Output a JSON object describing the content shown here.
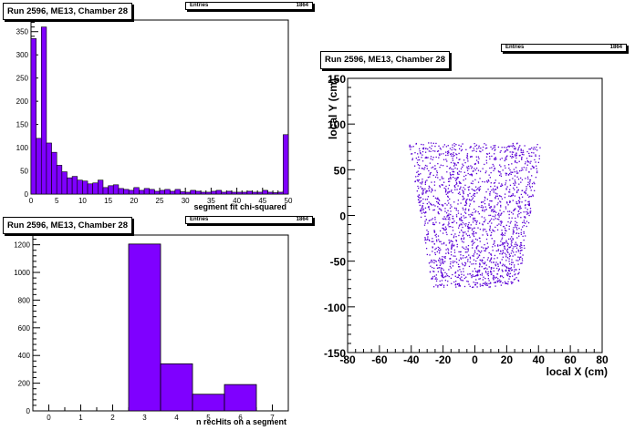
{
  "colors": {
    "fill": "#7f00ff",
    "axis": "#000000",
    "scatter": "#5a00d6"
  },
  "panels": {
    "chi2": {
      "title": "Run 2596, ME13, Chamber 28",
      "stats_label": "Entries",
      "stats_value": "1864",
      "xlabel": "segment fit chi-squared"
    },
    "nrechits": {
      "title": "Run 2596, ME13, Chamber 28",
      "stats_label": "Entries",
      "stats_value": "1864",
      "xlabel": "n recHits on a segment"
    },
    "scatter": {
      "title": "Run 2596, ME13, Chamber 28",
      "stats_label": "Entries",
      "stats_value": "1864",
      "xlabel": "local X (cm)",
      "ylabel": "local Y (cm)"
    }
  },
  "chart_data": [
    {
      "type": "bar",
      "title": "Run 2596, ME13, Chamber 28",
      "xlabel": "segment fit chi-squared",
      "ylabel": "",
      "xlim": [
        0,
        50
      ],
      "ylim": [
        0,
        375
      ],
      "bin_width": 1,
      "values": [
        335,
        120,
        360,
        110,
        90,
        62,
        48,
        35,
        38,
        30,
        28,
        22,
        24,
        30,
        14,
        18,
        20,
        12,
        10,
        8,
        14,
        8,
        12,
        10,
        6,
        8,
        10,
        6,
        10,
        5,
        4,
        8,
        6,
        4,
        4,
        6,
        8,
        4,
        6,
        4,
        4,
        4,
        6,
        4,
        4,
        8,
        4,
        3,
        4,
        128
      ],
      "xticks": [
        0,
        5,
        10,
        15,
        20,
        25,
        30,
        35,
        40,
        45,
        50
      ],
      "yticks": [
        0,
        50,
        100,
        150,
        200,
        250,
        300,
        350
      ]
    },
    {
      "type": "bar",
      "title": "Run 2596, ME13, Chamber 28",
      "xlabel": "n recHits on a segment",
      "ylabel": "",
      "xlim": [
        -0.5,
        7.5
      ],
      "ylim": [
        0,
        1270
      ],
      "bins": [
        {
          "low": 2.5,
          "high": 3.5,
          "value": 1205
        },
        {
          "low": 3.5,
          "high": 4.5,
          "value": 340
        },
        {
          "low": 4.5,
          "high": 5.5,
          "value": 120
        },
        {
          "low": 5.5,
          "high": 6.5,
          "value": 190
        }
      ],
      "xticks": [
        0,
        1,
        2,
        3,
        4,
        5,
        6,
        7
      ],
      "yticks": [
        0,
        200,
        400,
        600,
        800,
        1000,
        1200
      ]
    },
    {
      "type": "scatter",
      "title": "Run 2596, ME13, Chamber 28",
      "xlabel": "local X (cm)",
      "ylabel": "local Y (cm)",
      "xlim": [
        -80,
        80
      ],
      "ylim": [
        -150,
        150
      ],
      "xticks": [
        -80,
        -60,
        -40,
        -20,
        0,
        20,
        40,
        60,
        80
      ],
      "yticks": [
        -150,
        -100,
        -50,
        0,
        50,
        100,
        150
      ],
      "region": {
        "y_min": -78,
        "y_max": 80,
        "x_half_top": 42,
        "x_half_bottom": 27
      },
      "n_points": 1864
    }
  ]
}
